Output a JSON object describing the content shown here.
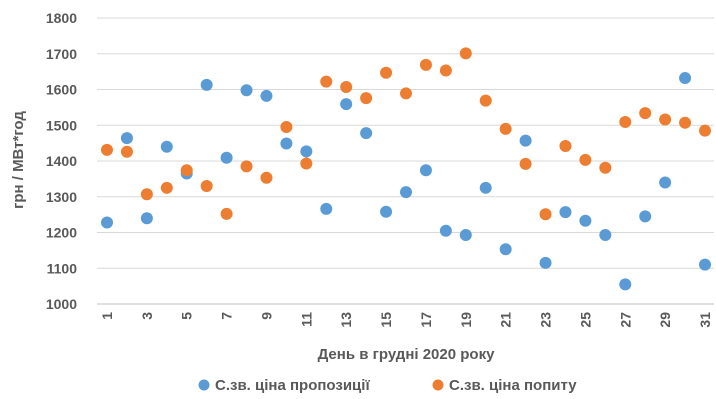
{
  "chart_data": {
    "type": "scatter",
    "title": "",
    "xlabel": "День в грудні 2020 року",
    "ylabel": "грн / МВт*год",
    "xlim": [
      1,
      31
    ],
    "ylim": [
      1000,
      1800
    ],
    "y_ticks": [
      1000,
      1100,
      1200,
      1300,
      1400,
      1500,
      1600,
      1700,
      1800
    ],
    "x_tick_labels": [
      "1",
      "3",
      "5",
      "7",
      "9",
      "11",
      "13",
      "15",
      "17",
      "19",
      "21",
      "23",
      "25",
      "27",
      "29",
      "31"
    ],
    "grid": "horizontal",
    "legend_position": "bottom",
    "series": [
      {
        "name": "С.зв. ціна пропозиції",
        "color": "#5b9bd5",
        "x": [
          1,
          2,
          3,
          4,
          5,
          6,
          7,
          8,
          9,
          10,
          11,
          12,
          13,
          14,
          15,
          16,
          17,
          18,
          19,
          20,
          21,
          22,
          23,
          24,
          25,
          26,
          27,
          28,
          29,
          30,
          31
        ],
        "y": [
          1228,
          1464,
          1240,
          1440,
          1365,
          1613,
          1409,
          1598,
          1582,
          1449,
          1427,
          1266,
          1559,
          1478,
          1258,
          1313,
          1374,
          1205,
          1193,
          1325,
          1153,
          1457,
          1115,
          1257,
          1233,
          1193,
          1055,
          1245,
          1340,
          1632,
          1110
        ]
      },
      {
        "name": "С.зв. ціна попиту",
        "color": "#ed7d31",
        "x": [
          1,
          2,
          3,
          4,
          5,
          6,
          7,
          8,
          9,
          10,
          11,
          12,
          13,
          14,
          15,
          16,
          17,
          18,
          19,
          20,
          21,
          22,
          23,
          24,
          25,
          26,
          27,
          28,
          29,
          30,
          31
        ],
        "y": [
          1431,
          1426,
          1307,
          1325,
          1374,
          1330,
          1252,
          1385,
          1353,
          1495,
          1393,
          1622,
          1607,
          1576,
          1647,
          1589,
          1669,
          1653,
          1701,
          1569,
          1490,
          1392,
          1251,
          1442,
          1403,
          1381,
          1509,
          1534,
          1516,
          1507,
          1485
        ]
      }
    ]
  }
}
